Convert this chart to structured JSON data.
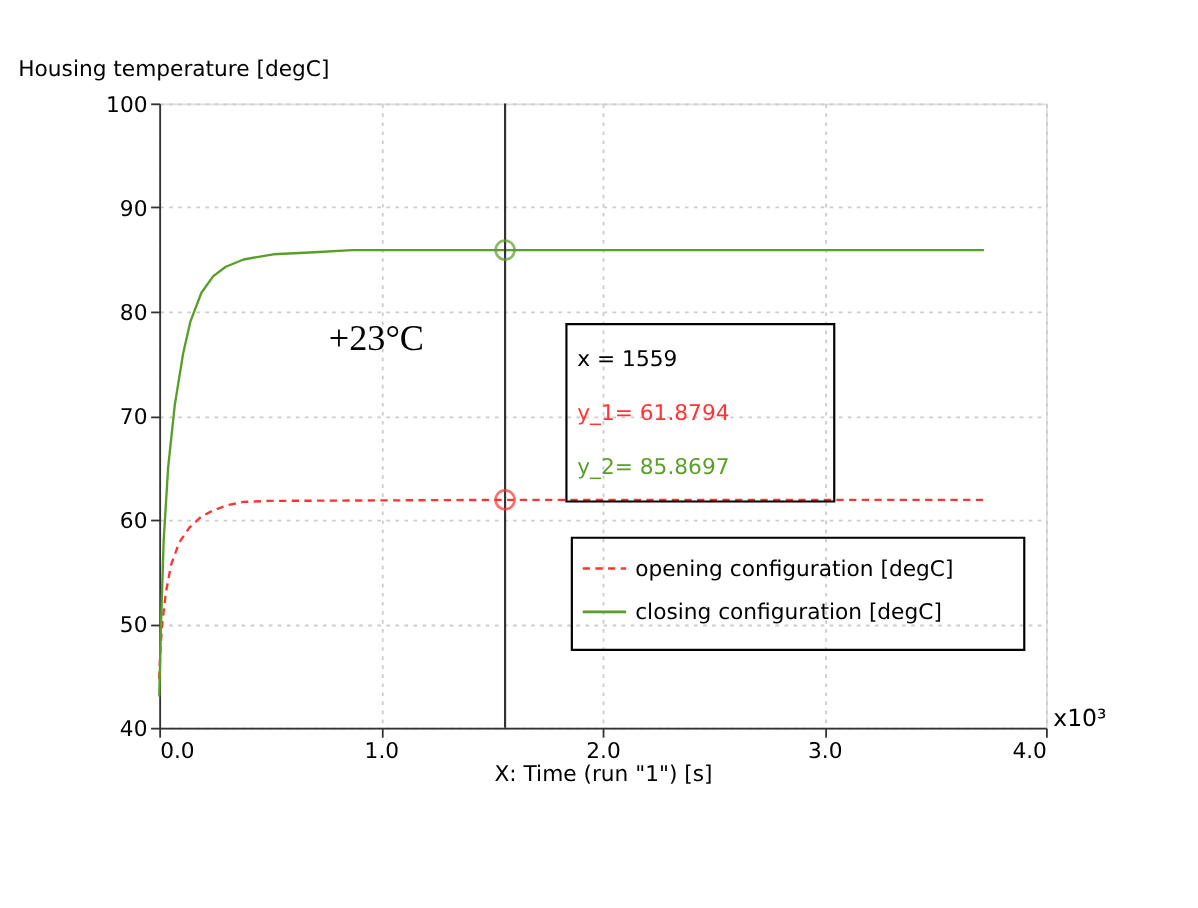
{
  "chart_data": {
    "type": "line",
    "title": "Housing temperature [degC]",
    "xlabel": "X: Time (run \"1\") [s]",
    "xlim": [
      0,
      4
    ],
    "xticks": [
      {
        "value": 0,
        "label": "0.0"
      },
      {
        "value": 1,
        "label": "1.0"
      },
      {
        "value": 2,
        "label": "2.0"
      },
      {
        "value": 3,
        "label": "3.0"
      },
      {
        "value": 4,
        "label": "4.0"
      }
    ],
    "ylim": [
      40,
      100
    ],
    "yticks": [
      40,
      50,
      60,
      70,
      80,
      90,
      100
    ],
    "grid": true,
    "legend": "bottom right",
    "series": [
      {
        "name": "opening configuration [degC]",
        "color": "#ff3333",
        "line_style": "dashed",
        "x": [
          0,
          0.005,
          0.013,
          0.03,
          0.054,
          0.09,
          0.135,
          0.19,
          0.244,
          0.31,
          0.38,
          0.5,
          1.56,
          3.72
        ],
        "values": [
          44.7,
          47.5,
          49.9,
          53.0,
          55.7,
          57.8,
          59.2,
          60.3,
          60.9,
          61.4,
          61.7,
          61.8,
          61.9,
          61.9
        ]
      },
      {
        "name": "closing configuration [degC]",
        "color": "#5a9e2a",
        "line_style": "solid",
        "x": [
          0,
          0.008,
          0.02,
          0.04,
          0.07,
          0.108,
          0.14,
          0.19,
          0.244,
          0.3,
          0.38,
          0.515,
          0.7,
          0.87,
          3.72
        ],
        "values": [
          43.0,
          50.0,
          58.0,
          65.0,
          71.0,
          76.0,
          79.0,
          81.8,
          83.4,
          84.3,
          85.0,
          85.5,
          85.7,
          85.9,
          85.9
        ]
      },
      {
        "type": "scatter",
        "marker": "circle",
        "color": "#ff3333",
        "x": [
          1.56
        ],
        "values": [
          61.9
        ]
      },
      {
        "type": "scatter",
        "marker": "circle",
        "color": "#5a9e2a",
        "x": [
          1.56
        ],
        "values": [
          85.9
        ]
      }
    ],
    "ref_lines": [
      {
        "axis": "x",
        "value": 1.56,
        "color": "#333333"
      }
    ],
    "annotations": [
      "+23°C",
      "x    = 1559",
      "y_1= 61.8794",
      "y_2= 85.8697",
      "x10³"
    ]
  }
}
